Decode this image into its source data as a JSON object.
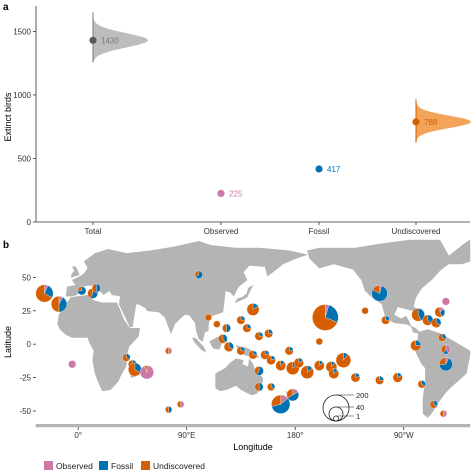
{
  "chart_data": [
    {
      "panel": "a",
      "type": "scatter",
      "ylabel": "Extinct birds",
      "categories": [
        "Total",
        "Observed",
        "Fossil",
        "Undiscovered"
      ],
      "ylim": [
        0,
        1700
      ],
      "yticks": [
        0,
        500,
        1000,
        1500
      ],
      "points": [
        {
          "category": "Total",
          "value": 1430,
          "label": "1430",
          "color": "#5a5a5a",
          "distribution": "slab-gray"
        },
        {
          "category": "Observed",
          "value": 225,
          "label": "225",
          "color": "#cc79a7"
        },
        {
          "category": "Fossil",
          "value": 417,
          "label": "417",
          "color": "#0072b2"
        },
        {
          "category": "Undiscovered",
          "value": 788,
          "label": "788",
          "color": "#d55e00",
          "distribution": "slab-orange"
        }
      ],
      "distributions": {
        "Total": {
          "center": 1430,
          "min": 1255,
          "max": 1650,
          "color": "#bdbdbd"
        },
        "Undiscovered": {
          "center": 788,
          "min": 625,
          "max": 965,
          "color": "#f3a45a"
        }
      },
      "grid": false
    },
    {
      "panel": "b",
      "type": "scatter",
      "subtype": "map-pies",
      "xlabel": "Longitude",
      "ylabel": "Latitude",
      "xticks": [
        "0°",
        "90°E",
        "180°",
        "90°W"
      ],
      "yticks": [
        50,
        25,
        0,
        -25,
        -50
      ],
      "ylim": [
        -62,
        78
      ],
      "xlim": [
        -35,
        325
      ],
      "legend": {
        "position": "bottom",
        "items": [
          {
            "label": "Observed",
            "color": "#cc79a7"
          },
          {
            "label": "Fossil",
            "color": "#0072b2"
          },
          {
            "label": "Undiscovered",
            "color": "#d55e00"
          }
        ]
      },
      "size_legend": {
        "values": [
          "200",
          "40",
          "1"
        ],
        "position": "bottom-right"
      },
      "pies": [
        {
          "lon": -28,
          "lat": 38,
          "obs": 2,
          "fos": 8,
          "und": 20
        },
        {
          "lon": -16,
          "lat": 30,
          "obs": 2,
          "fos": 10,
          "und": 12
        },
        {
          "lon": 3,
          "lat": 40,
          "obs": 0,
          "fos": 3,
          "und": 1
        },
        {
          "lon": 12,
          "lat": 38,
          "obs": 0,
          "fos": 4,
          "und": 3
        },
        {
          "lon": 15,
          "lat": 42,
          "obs": 0,
          "fos": 2,
          "und": 2
        },
        {
          "lon": 40,
          "lat": -10,
          "obs": 0,
          "fos": 1,
          "und": 2
        },
        {
          "lon": 45,
          "lat": -15,
          "obs": 0,
          "fos": 2,
          "und": 2
        },
        {
          "lon": 47,
          "lat": -19,
          "obs": 0,
          "fos": 5,
          "und": 10
        },
        {
          "lon": 57,
          "lat": -21,
          "obs": 15,
          "fos": 0,
          "und": 1
        },
        {
          "lon": -5,
          "lat": -15,
          "obs": 3,
          "fos": 0,
          "und": 0
        },
        {
          "lon": 75,
          "lat": -5,
          "obs": 1,
          "fos": 0,
          "und": 1
        },
        {
          "lon": 100,
          "lat": 52,
          "obs": 0,
          "fos": 2,
          "und": 1
        },
        {
          "lon": 108,
          "lat": 20,
          "obs": 0,
          "fos": 0,
          "und": 2
        },
        {
          "lon": 115,
          "lat": 15,
          "obs": 0,
          "fos": 0,
          "und": 2
        },
        {
          "lon": 123,
          "lat": 12,
          "obs": 0,
          "fos": 2,
          "und": 2
        },
        {
          "lon": 120,
          "lat": 4,
          "obs": 0,
          "fos": 2,
          "und": 3
        },
        {
          "lon": 125,
          "lat": -2,
          "obs": 0,
          "fos": 2,
          "und": 4
        },
        {
          "lon": 135,
          "lat": 18,
          "obs": 0,
          "fos": 1,
          "und": 3
        },
        {
          "lon": 140,
          "lat": 12,
          "obs": 0,
          "fos": 1,
          "und": 3
        },
        {
          "lon": 145,
          "lat": 26,
          "obs": 0,
          "fos": 2,
          "und": 10
        },
        {
          "lon": 150,
          "lat": 6,
          "obs": 0,
          "fos": 1,
          "und": 3
        },
        {
          "lon": 158,
          "lat": 8,
          "obs": 0,
          "fos": 1,
          "und": 3
        },
        {
          "lon": 135,
          "lat": -5,
          "obs": 0,
          "fos": 1,
          "und": 3
        },
        {
          "lon": 145,
          "lat": -8,
          "obs": 0,
          "fos": 1,
          "und": 3
        },
        {
          "lon": 155,
          "lat": -8,
          "obs": 0,
          "fos": 1,
          "und": 4
        },
        {
          "lon": 160,
          "lat": -12,
          "obs": 0,
          "fos": 1,
          "und": 4
        },
        {
          "lon": 168,
          "lat": -16,
          "obs": 0,
          "fos": 1,
          "und": 6
        },
        {
          "lon": 178,
          "lat": -18,
          "obs": 0,
          "fos": 2,
          "und": 12
        },
        {
          "lon": 183,
          "lat": -14,
          "obs": 0,
          "fos": 1,
          "und": 5
        },
        {
          "lon": 190,
          "lat": -21,
          "obs": 0,
          "fos": 2,
          "und": 12
        },
        {
          "lon": 200,
          "lat": -16,
          "obs": 0,
          "fos": 1,
          "und": 6
        },
        {
          "lon": 210,
          "lat": -17,
          "obs": 0,
          "fos": 1,
          "und": 8
        },
        {
          "lon": 220,
          "lat": -12,
          "obs": 0,
          "fos": 2,
          "und": 18
        },
        {
          "lon": 212,
          "lat": -22,
          "obs": 0,
          "fos": 1,
          "und": 6
        },
        {
          "lon": 230,
          "lat": -25,
          "obs": 0,
          "fos": 1,
          "und": 4
        },
        {
          "lon": 250,
          "lat": -27,
          "obs": 0,
          "fos": 1,
          "und": 3
        },
        {
          "lon": 265,
          "lat": -25,
          "obs": 0,
          "fos": 1,
          "und": 5
        },
        {
          "lon": 175,
          "lat": -5,
          "obs": 0,
          "fos": 1,
          "und": 3
        },
        {
          "lon": 200,
          "lat": 2,
          "obs": 0,
          "fos": 0,
          "und": 2
        },
        {
          "lon": 205,
          "lat": 20,
          "obs": 4,
          "fos": 24,
          "und": 62
        },
        {
          "lon": 168,
          "lat": -45,
          "obs": 5,
          "fos": 20,
          "und": 10
        },
        {
          "lon": 178,
          "lat": -38,
          "obs": 2,
          "fos": 6,
          "und": 4
        },
        {
          "lon": 150,
          "lat": -20,
          "obs": 0,
          "fos": 3,
          "und": 2
        },
        {
          "lon": 150,
          "lat": -32,
          "obs": 0,
          "fos": 2,
          "und": 2
        },
        {
          "lon": 160,
          "lat": -32,
          "obs": 0,
          "fos": 1,
          "und": 2
        },
        {
          "lon": 250,
          "lat": 38,
          "obs": 1,
          "fos": 18,
          "und": 4
        },
        {
          "lon": 238,
          "lat": 25,
          "obs": 0,
          "fos": 0,
          "und": 2
        },
        {
          "lon": 255,
          "lat": 18,
          "obs": 0,
          "fos": 1,
          "und": 3
        },
        {
          "lon": 282,
          "lat": 22,
          "obs": 0,
          "fos": 6,
          "und": 8
        },
        {
          "lon": 290,
          "lat": 18,
          "obs": 0,
          "fos": 3,
          "und": 5
        },
        {
          "lon": 297,
          "lat": 16,
          "obs": 0,
          "fos": 2,
          "und": 4
        },
        {
          "lon": 300,
          "lat": 24,
          "obs": 1,
          "fos": 2,
          "und": 4
        },
        {
          "lon": 305,
          "lat": 32,
          "obs": 3,
          "fos": 0,
          "und": 0
        },
        {
          "lon": 302,
          "lat": 5,
          "obs": 0,
          "fos": 1,
          "und": 2
        },
        {
          "lon": 305,
          "lat": -4,
          "obs": 2,
          "fos": 1,
          "und": 2
        },
        {
          "lon": 305,
          "lat": -15,
          "obs": 1,
          "fos": 10,
          "und": 4
        },
        {
          "lon": 280,
          "lat": -1,
          "obs": 0,
          "fos": 2,
          "und": 6
        },
        {
          "lon": 285,
          "lat": -30,
          "obs": 0,
          "fos": 1,
          "und": 2
        },
        {
          "lon": 295,
          "lat": -45,
          "obs": 0,
          "fos": 1,
          "und": 2
        },
        {
          "lon": 303,
          "lat": -52,
          "obs": 1,
          "fos": 0,
          "und": 1
        },
        {
          "lon": 85,
          "lat": -45,
          "obs": 1,
          "fos": 0,
          "und": 1
        },
        {
          "lon": 75,
          "lat": -49,
          "obs": 0,
          "fos": 1,
          "und": 1
        }
      ]
    }
  ]
}
